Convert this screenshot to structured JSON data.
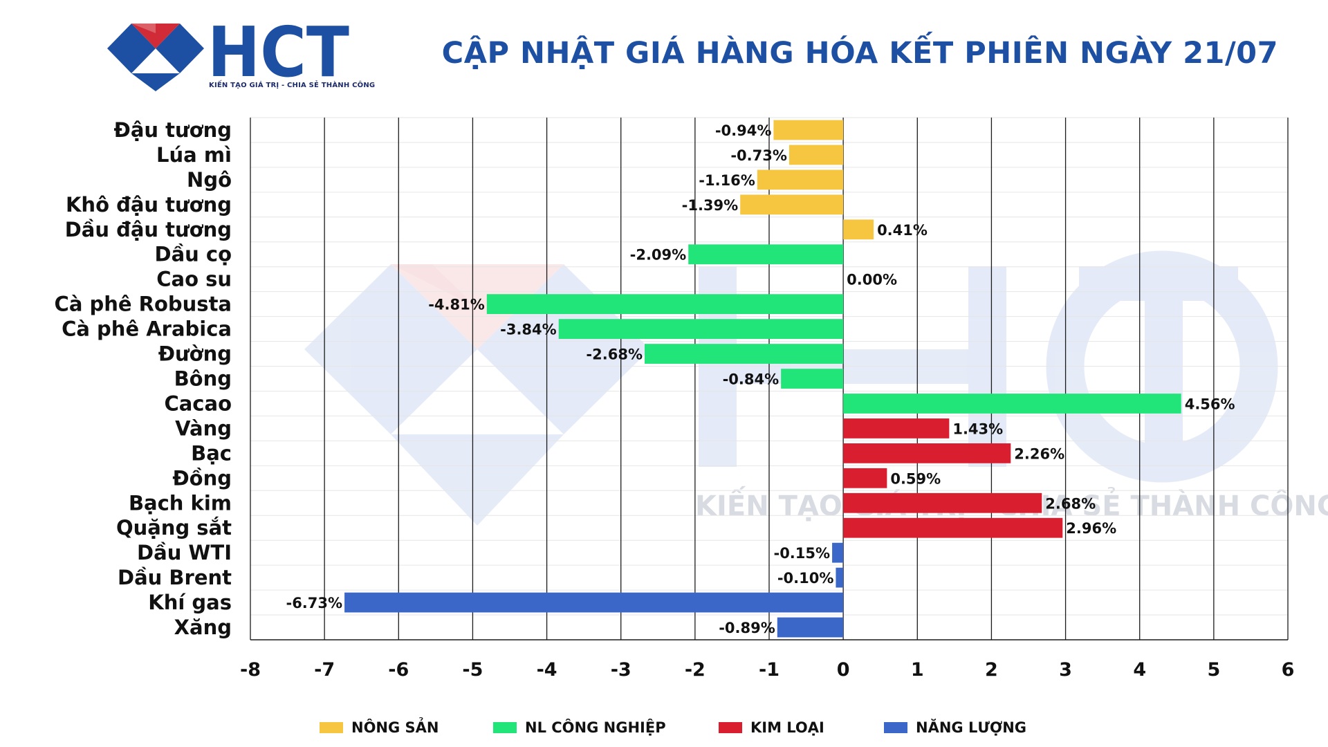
{
  "brand": {
    "logo_text": "HCT",
    "tagline": "KIẾN TẠO GIÁ TRỊ - CHIA SẺ THÀNH CÔNG",
    "watermark_tagline": "KIẾN TẠO GIÁ TRỊ - CHIA SẺ THÀNH CÔNG"
  },
  "header": {
    "title": "CẬP NHẬT GIÁ HÀNG HÓA KẾT PHIÊN NGÀY 21/07"
  },
  "colors": {
    "title": "#1d4fa3",
    "nong_san": "#f7c641",
    "nl_cong_nghiep": "#22e57a",
    "kim_loai": "#d91f2f",
    "nang_luong": "#3a67c8",
    "logo_blue": "#1d4fa3",
    "logo_red": "#d02b36"
  },
  "chart_data": {
    "type": "bar",
    "orientation": "horizontal",
    "xlim": [
      -8,
      6
    ],
    "xticks": [
      "-8",
      "-7",
      "-6",
      "-5",
      "-4",
      "-3",
      "-2",
      "-1",
      "0",
      "1",
      "2",
      "3",
      "4",
      "5",
      "6"
    ],
    "grid": "vertical",
    "legend_position": "bottom",
    "series": [
      {
        "name": "NÔNG SẢN",
        "color_key": "nong_san"
      },
      {
        "name": "NL CÔNG NGHIỆP",
        "color_key": "nl_cong_nghiep"
      },
      {
        "name": "KIM LOẠI",
        "color_key": "kim_loai"
      },
      {
        "name": "NĂNG LƯỢNG",
        "color_key": "nang_luong"
      }
    ],
    "bars": [
      {
        "category": "Đậu tương",
        "value": -0.94,
        "label": "-0.94%",
        "series": 0
      },
      {
        "category": "Lúa mì",
        "value": -0.73,
        "label": "-0.73%",
        "series": 0
      },
      {
        "category": "Ngô",
        "value": -1.16,
        "label": "-1.16%",
        "series": 0
      },
      {
        "category": "Khô đậu tương",
        "value": -1.39,
        "label": "-1.39%",
        "series": 0
      },
      {
        "category": "Dầu đậu tương",
        "value": 0.41,
        "label": "0.41%",
        "series": 0
      },
      {
        "category": "Dầu cọ",
        "value": -2.09,
        "label": "-2.09%",
        "series": 1
      },
      {
        "category": "Cao su",
        "value": 0.0,
        "label": "0.00%",
        "series": 1
      },
      {
        "category": "Cà phê Robusta",
        "value": -4.81,
        "label": "-4.81%",
        "series": 1
      },
      {
        "category": "Cà phê Arabica",
        "value": -3.84,
        "label": "-3.84%",
        "series": 1
      },
      {
        "category": "Đường",
        "value": -2.68,
        "label": "-2.68%",
        "series": 1
      },
      {
        "category": "Bông",
        "value": -0.84,
        "label": "-0.84%",
        "series": 1
      },
      {
        "category": "Cacao",
        "value": 4.56,
        "label": "4.56%",
        "series": 1
      },
      {
        "category": "Vàng",
        "value": 1.43,
        "label": "1.43%",
        "series": 2
      },
      {
        "category": "Bạc",
        "value": 2.26,
        "label": "2.26%",
        "series": 2
      },
      {
        "category": "Đồng",
        "value": 0.59,
        "label": "0.59%",
        "series": 2
      },
      {
        "category": "Bạch kim",
        "value": 2.68,
        "label": "2.68%",
        "series": 2
      },
      {
        "category": "Quặng sắt",
        "value": 2.96,
        "label": "2.96%",
        "series": 2
      },
      {
        "category": "Dầu WTI",
        "value": -0.15,
        "label": "-0.15%",
        "series": 3
      },
      {
        "category": "Dầu Brent",
        "value": -0.1,
        "label": "-0.10%",
        "series": 3
      },
      {
        "category": "Khí gas",
        "value": -6.73,
        "label": "-6.73%",
        "series": 3
      },
      {
        "category": "Xăng",
        "value": -0.89,
        "label": "-0.89%",
        "series": 3
      }
    ]
  }
}
